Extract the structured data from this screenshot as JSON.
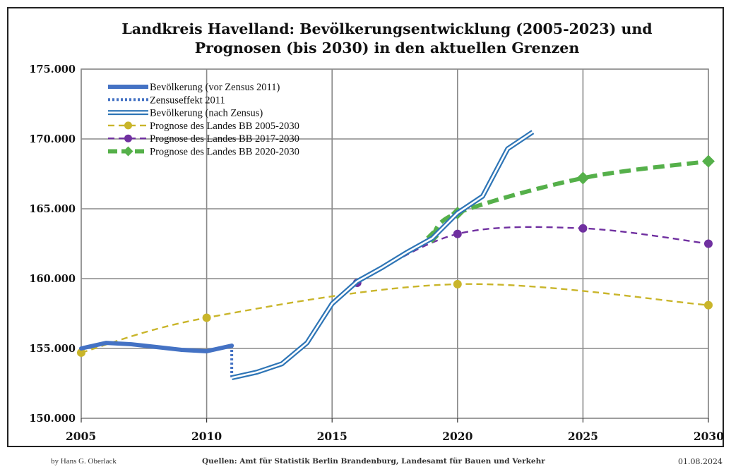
{
  "chart_data": {
    "type": "line",
    "title_line1": "Landkreis Havelland:  Bevölkerungsentwicklung (2005-2023) und",
    "title_line2": "Prognosen (bis 2030) in den aktuellen Grenzen",
    "xlim": [
      2005,
      2030
    ],
    "ylim": [
      150000,
      175000
    ],
    "x_ticks": [
      2005,
      2010,
      2015,
      2020,
      2025,
      2030
    ],
    "x_tick_labels": [
      "2005",
      "2010",
      "2015",
      "2020",
      "2025",
      "2030"
    ],
    "y_ticks": [
      150000,
      155000,
      160000,
      165000,
      170000,
      175000
    ],
    "y_tick_labels": [
      "150.000",
      "155.000",
      "160.000",
      "165.000",
      "170.000",
      "175.000"
    ],
    "grid": true,
    "legend_position": "top-left",
    "series": [
      {
        "name": "Bevölkerung (vor Zensus 2011)",
        "style": "thick-solid",
        "color": "#4472c4",
        "x": [
          2005,
          2006,
          2007,
          2008,
          2009,
          2010,
          2011
        ],
        "y": [
          155000,
          155400,
          155300,
          155100,
          154900,
          154800,
          155200
        ]
      },
      {
        "name": "Zensuseffekt 2011",
        "style": "dotted",
        "color": "#4472c4",
        "x": [
          2011,
          2011
        ],
        "y": [
          155200,
          152900
        ]
      },
      {
        "name": "Bevölkerung (nach Zensus)",
        "style": "double",
        "color": "#2e75b6",
        "x": [
          2011,
          2012,
          2013,
          2014,
          2015,
          2016,
          2017,
          2018,
          2019,
          2020,
          2021,
          2022,
          2023
        ],
        "y": [
          152900,
          153300,
          153900,
          155400,
          158200,
          159800,
          160800,
          161900,
          162900,
          164700,
          165900,
          169300,
          170500
        ]
      },
      {
        "name": "Prognose des Landes BB 2005-2030",
        "style": "dashed-marker",
        "color": "#c9b52a",
        "marker": "circle",
        "x": [
          2005,
          2010,
          2020,
          2030
        ],
        "y": [
          154700,
          157200,
          159600,
          158100
        ]
      },
      {
        "name": "Prognose des Landes BB 2017-2030",
        "style": "dashed-marker",
        "color": "#7030a0",
        "marker": "circle",
        "x": [
          2016,
          2020,
          2025,
          2030
        ],
        "y": [
          159700,
          163200,
          163600,
          162500
        ]
      },
      {
        "name": "Prognose des Landes BB 2020-2030",
        "style": "thick-dashed-marker",
        "color": "#55b04a",
        "marker": "diamond",
        "x": [
          2019,
          2020,
          2025,
          2030
        ],
        "y": [
          163000,
          164700,
          167200,
          168400
        ]
      }
    ]
  },
  "footer": {
    "author": "by Hans G. Oberlack",
    "source": "Quellen: Amt für Statistik Berlin Brandenburg, Landesamt für Bauen und Verkehr",
    "date": "01.08.2024"
  }
}
